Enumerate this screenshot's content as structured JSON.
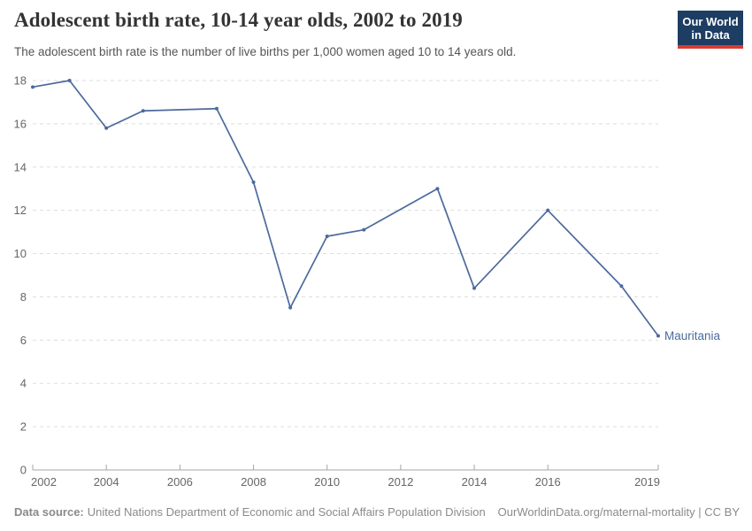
{
  "header": {
    "title": "Adolescent birth rate, 10-14 year olds, 2002 to 2019",
    "subtitle": "The adolescent birth rate is the number of live births per 1,000 women aged 10 to 14 years old."
  },
  "logo": {
    "line1": "Our World",
    "line2": "in Data"
  },
  "chart_data": {
    "type": "line",
    "title": "Adolescent birth rate, 10-14 year olds, 2002 to 2019",
    "xlabel": "",
    "ylabel": "live births per 1,000 women aged 10 to 14",
    "xlim": [
      2002,
      2019
    ],
    "ylim": [
      0,
      18
    ],
    "xticks": [
      2002,
      2004,
      2006,
      2008,
      2010,
      2012,
      2014,
      2016,
      2019
    ],
    "yticks": [
      0,
      2,
      4,
      6,
      8,
      10,
      12,
      14,
      16,
      18
    ],
    "grid": "horizontal-dashed",
    "legend_position": "end-of-line-label",
    "series": [
      {
        "name": "Mauritania",
        "color": "#4C6A9C",
        "points": [
          [
            2002,
            17.7
          ],
          [
            2003,
            18.0
          ],
          [
            2004,
            15.8
          ],
          [
            2005,
            16.6
          ],
          [
            2007,
            16.7
          ],
          [
            2008,
            13.3
          ],
          [
            2009,
            7.5
          ],
          [
            2010,
            10.8
          ],
          [
            2011,
            11.1
          ],
          [
            2013,
            13.0
          ],
          [
            2014,
            8.4
          ],
          [
            2016,
            12.0
          ],
          [
            2018,
            8.5
          ],
          [
            2019,
            6.2
          ]
        ]
      }
    ]
  },
  "footer": {
    "datasource_label": "Data source:",
    "datasource_text": "United Nations Department of Economic and Social Affairs Population Division",
    "citation": "OurWorldinData.org/maternal-mortality | CC BY"
  },
  "colors": {
    "line": "#4C6A9C",
    "grid": "#dddddd",
    "axis": "#a5a5a5",
    "tick_label": "#666666",
    "title": "#333333",
    "subtitle": "#555555",
    "footer": "#8a8a8a",
    "logo_bg": "#1d3d63",
    "logo_accent": "#d93a34"
  }
}
